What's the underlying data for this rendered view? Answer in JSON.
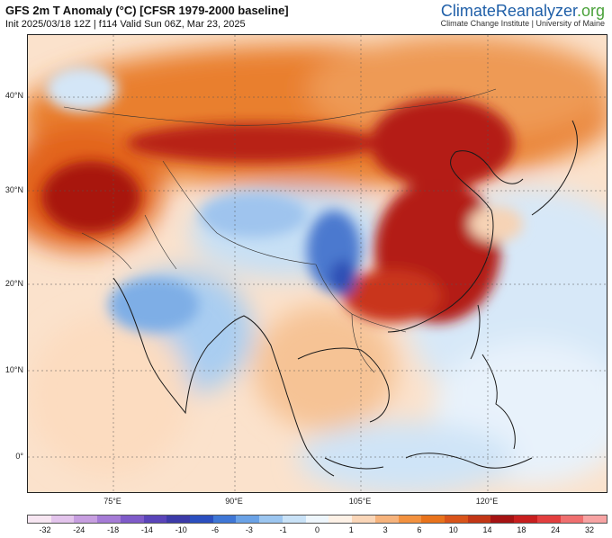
{
  "header": {
    "title": "GFS 2m T Anomaly (°C) [CFSR 1979-2000 baseline]",
    "subtitle": "Init 2025/03/18 12Z | f114 Valid Sun 06Z, Mar 23, 2025",
    "brand_part1": "ClimateReanalyzer",
    "brand_part2": ".org",
    "brand_sub": "Climate Change Institute | University of Maine"
  },
  "map": {
    "lat_labels": [
      "40°N",
      "30°N",
      "20°N",
      "10°N",
      "0°"
    ],
    "lon_labels": [
      "75°E",
      "90°E",
      "105°E",
      "120°E"
    ]
  },
  "colorbar": {
    "ticks": [
      "-32",
      "-24",
      "-18",
      "-14",
      "-10",
      "-6",
      "-3",
      "-1",
      "0",
      "1",
      "3",
      "6",
      "10",
      "14",
      "18",
      "24",
      "32"
    ],
    "colors": [
      "#f7e6f2",
      "#e3c4ec",
      "#c79ee0",
      "#a57bd6",
      "#7f5bc9",
      "#5a44b9",
      "#3c3aa8",
      "#2b4fbf",
      "#3f77d6",
      "#6aa2e6",
      "#9cc6f0",
      "#c9e2f7",
      "#eef6fc",
      "#fdf1e6",
      "#fad6b8",
      "#f6b37c",
      "#f2913f",
      "#e8731c",
      "#d9541a",
      "#c23616",
      "#a51313",
      "#c81f1f",
      "#e23e3e",
      "#ef6f6f",
      "#f7a3a3"
    ]
  }
}
